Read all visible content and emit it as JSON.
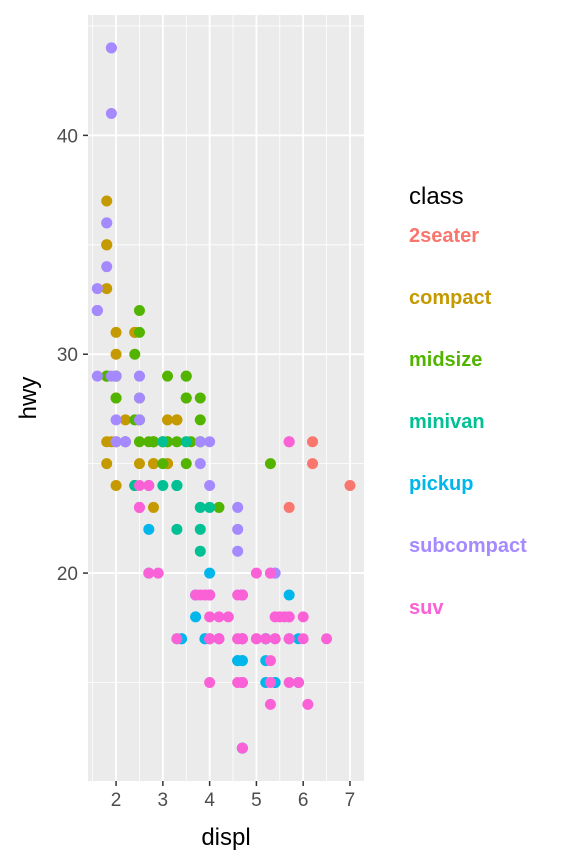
{
  "chart_data": {
    "type": "scatter",
    "xlabel": "displ",
    "ylabel": "hwy",
    "xlim": [
      1.4,
      7.3
    ],
    "ylim": [
      10.5,
      45.5
    ],
    "x_ticks": [
      2,
      3,
      4,
      5,
      6,
      7
    ],
    "y_ticks": [
      20,
      30,
      40
    ],
    "grid": true,
    "legend": {
      "title": "class",
      "position": "right"
    },
    "series": [
      {
        "name": "2seater",
        "color": "#F8766D",
        "points": [
          [
            5.7,
            26
          ],
          [
            5.7,
            23
          ],
          [
            6.2,
            26
          ],
          [
            6.2,
            25
          ],
          [
            7.0,
            24
          ]
        ]
      },
      {
        "name": "compact",
        "color": "#C49A00",
        "points": [
          [
            1.8,
            29
          ],
          [
            1.8,
            29
          ],
          [
            2.0,
            31
          ],
          [
            2.0,
            30
          ],
          [
            2.8,
            26
          ],
          [
            2.8,
            26
          ],
          [
            3.1,
            27
          ],
          [
            1.8,
            26
          ],
          [
            1.8,
            25
          ],
          [
            2.0,
            28
          ],
          [
            2.0,
            29
          ],
          [
            2.8,
            25
          ],
          [
            2.8,
            25
          ],
          [
            3.1,
            25
          ],
          [
            3.1,
            25
          ],
          [
            2.2,
            26
          ],
          [
            2.2,
            27
          ],
          [
            2.4,
            31
          ],
          [
            2.4,
            31
          ],
          [
            3.0,
            26
          ],
          [
            3.0,
            26
          ],
          [
            3.3,
            27
          ],
          [
            1.8,
            33
          ],
          [
            1.8,
            35
          ],
          [
            1.8,
            37
          ],
          [
            1.8,
            35
          ],
          [
            1.8,
            29
          ],
          [
            2.0,
            26
          ],
          [
            2.0,
            29
          ],
          [
            2.0,
            29
          ],
          [
            2.0,
            24
          ],
          [
            2.8,
            23
          ],
          [
            1.9,
            26
          ],
          [
            2.5,
            27
          ],
          [
            2.5,
            25
          ],
          [
            3.3,
            27
          ]
        ]
      },
      {
        "name": "midsize",
        "color": "#53B400",
        "points": [
          [
            2.4,
            27
          ],
          [
            2.4,
            30
          ],
          [
            2.5,
            27
          ],
          [
            2.5,
            31
          ],
          [
            2.5,
            32
          ],
          [
            3.0,
            26
          ],
          [
            3.3,
            26
          ],
          [
            3.5,
            28
          ],
          [
            3.6,
            26
          ],
          [
            2.7,
            26
          ],
          [
            3.1,
            26
          ],
          [
            3.8,
            26
          ],
          [
            3.8,
            26
          ],
          [
            5.3,
            25
          ],
          [
            2.4,
            24
          ],
          [
            2.4,
            24
          ],
          [
            3.5,
            25
          ],
          [
            2.5,
            26
          ],
          [
            2.5,
            28
          ],
          [
            2.8,
            26
          ],
          [
            3.0,
            25
          ],
          [
            3.5,
            26
          ],
          [
            1.8,
            29
          ],
          [
            1.8,
            29
          ],
          [
            2.0,
            28
          ],
          [
            2.0,
            29
          ],
          [
            2.8,
            26
          ],
          [
            3.1,
            29
          ],
          [
            3.1,
            26
          ],
          [
            3.5,
            29
          ],
          [
            3.5,
            29
          ],
          [
            3.5,
            28
          ],
          [
            3.8,
            28
          ],
          [
            3.8,
            27
          ],
          [
            4.2,
            23
          ]
        ]
      },
      {
        "name": "minivan",
        "color": "#00C094",
        "points": [
          [
            2.4,
            24
          ],
          [
            3.0,
            24
          ],
          [
            3.3,
            22
          ],
          [
            3.3,
            24
          ],
          [
            3.3,
            24
          ],
          [
            3.3,
            24
          ],
          [
            3.3,
            17
          ],
          [
            3.8,
            22
          ],
          [
            3.8,
            21
          ],
          [
            3.8,
            23
          ],
          [
            4.0,
            23
          ],
          [
            3.5,
            26
          ],
          [
            3.0,
            26
          ]
        ]
      },
      {
        "name": "pickup",
        "color": "#00B6EB",
        "points": [
          [
            3.7,
            19
          ],
          [
            3.7,
            18
          ],
          [
            3.9,
            17
          ],
          [
            3.9,
            17
          ],
          [
            4.7,
            19
          ],
          [
            4.7,
            19
          ],
          [
            4.7,
            12
          ],
          [
            5.2,
            17
          ],
          [
            5.2,
            17
          ],
          [
            5.7,
            17
          ],
          [
            5.9,
            17
          ],
          [
            4.7,
            17
          ],
          [
            4.7,
            17
          ],
          [
            4.7,
            16
          ],
          [
            4.7,
            16
          ],
          [
            4.7,
            12
          ],
          [
            5.2,
            15
          ],
          [
            5.2,
            16
          ],
          [
            5.9,
            15
          ],
          [
            4.2,
            17
          ],
          [
            4.6,
            16
          ],
          [
            4.6,
            16
          ],
          [
            5.4,
            15
          ],
          [
            5.4,
            15
          ],
          [
            2.7,
            20
          ],
          [
            2.7,
            22
          ],
          [
            3.4,
            17
          ],
          [
            3.4,
            17
          ],
          [
            4.0,
            20
          ],
          [
            4.0,
            19
          ],
          [
            4.7,
            15
          ],
          [
            5.2,
            17
          ],
          [
            5.7,
            19
          ]
        ]
      },
      {
        "name": "subcompact",
        "color": "#A58AFF",
        "points": [
          [
            3.8,
            26
          ],
          [
            3.8,
            25
          ],
          [
            4.0,
            26
          ],
          [
            4.0,
            24
          ],
          [
            4.6,
            21
          ],
          [
            4.6,
            22
          ],
          [
            4.6,
            23
          ],
          [
            5.4,
            20
          ],
          [
            5.4,
            20
          ],
          [
            1.6,
            33
          ],
          [
            1.6,
            32
          ],
          [
            1.6,
            32
          ],
          [
            1.6,
            29
          ],
          [
            1.6,
            32
          ],
          [
            1.8,
            34
          ],
          [
            1.8,
            36
          ],
          [
            1.8,
            36
          ],
          [
            2.0,
            29
          ],
          [
            1.9,
            44
          ],
          [
            1.9,
            44
          ],
          [
            1.9,
            41
          ],
          [
            1.9,
            29
          ],
          [
            2.0,
            26
          ],
          [
            2.5,
            29
          ],
          [
            2.5,
            29
          ],
          [
            2.2,
            26
          ],
          [
            2.2,
            26
          ],
          [
            2.5,
            27
          ],
          [
            2.5,
            28
          ],
          [
            2.0,
            27
          ],
          [
            2.0,
            26
          ],
          [
            2.7,
            24
          ]
        ]
      },
      {
        "name": "suv",
        "color": "#FB61D7",
        "points": [
          [
            5.3,
            20
          ],
          [
            5.3,
            15
          ],
          [
            5.3,
            20
          ],
          [
            5.7,
            17
          ],
          [
            6.0,
            17
          ],
          [
            5.7,
            26
          ],
          [
            4.0,
            15
          ],
          [
            4.7,
            15
          ],
          [
            4.7,
            12
          ],
          [
            4.7,
            17
          ],
          [
            5.2,
            17
          ],
          [
            5.7,
            17
          ],
          [
            5.9,
            15
          ],
          [
            4.0,
            17
          ],
          [
            4.0,
            19
          ],
          [
            4.0,
            17
          ],
          [
            4.0,
            19
          ],
          [
            4.6,
            17
          ],
          [
            5.0,
            17
          ],
          [
            4.2,
            17
          ],
          [
            4.2,
            18
          ],
          [
            4.6,
            17
          ],
          [
            5.4,
            17
          ],
          [
            5.4,
            17
          ],
          [
            3.7,
            19
          ],
          [
            3.9,
            19
          ],
          [
            4.0,
            17
          ],
          [
            4.7,
            19
          ],
          [
            4.7,
            19
          ],
          [
            5.0,
            17
          ],
          [
            5.3,
            16
          ],
          [
            5.6,
            18
          ],
          [
            6.5,
            17
          ],
          [
            6.1,
            14
          ],
          [
            5.3,
            14
          ],
          [
            5.7,
            18
          ],
          [
            4.0,
            19
          ],
          [
            4.6,
            19
          ],
          [
            5.0,
            20
          ],
          [
            5.4,
            18
          ],
          [
            5.5,
            18
          ],
          [
            5.7,
            18
          ],
          [
            6.0,
            18
          ],
          [
            3.3,
            17
          ],
          [
            3.8,
            19
          ],
          [
            4.7,
            17
          ],
          [
            4.6,
            15
          ],
          [
            5.7,
            15
          ],
          [
            2.5,
            23
          ],
          [
            2.5,
            23
          ],
          [
            2.7,
            20
          ],
          [
            2.7,
            24
          ],
          [
            4.0,
            18
          ],
          [
            4.4,
            18
          ],
          [
            4.7,
            15
          ],
          [
            4.7,
            19
          ],
          [
            4.7,
            17
          ],
          [
            2.5,
            24
          ],
          [
            2.9,
            20
          ],
          [
            4.2,
            17
          ]
        ]
      }
    ]
  }
}
